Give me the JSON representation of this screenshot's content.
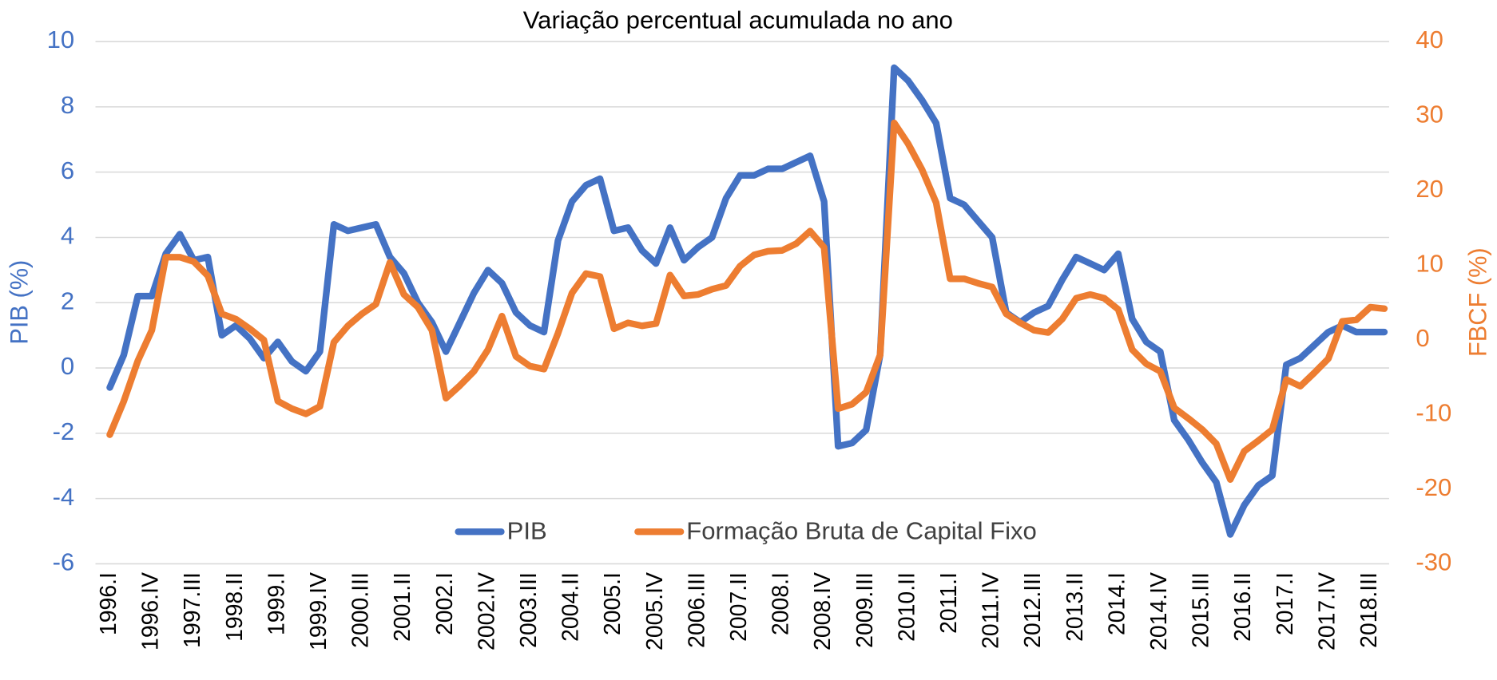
{
  "chart_data": {
    "type": "line",
    "title": "Variação percentual acumulada no ano",
    "y_label": "PIB (%)",
    "y2_label": "FBCF (%)",
    "categories": [
      "1996.I",
      null,
      null,
      "1996.IV",
      null,
      null,
      "1997.III",
      null,
      null,
      "1998.II",
      null,
      null,
      "1999.I",
      null,
      null,
      "1999.IV",
      null,
      null,
      "2000.III",
      null,
      null,
      "2001.II",
      null,
      null,
      "2002.I",
      null,
      null,
      "2002.IV",
      null,
      null,
      "2003.III",
      null,
      null,
      "2004.II",
      null,
      null,
      "2005.I",
      null,
      null,
      "2005.IV",
      null,
      null,
      "2006.III",
      null,
      null,
      "2007.II",
      null,
      null,
      "2008.I",
      null,
      null,
      "2008.IV",
      null,
      null,
      "2009.III",
      null,
      null,
      "2010.II",
      null,
      null,
      "2011.I",
      null,
      null,
      "2011.IV",
      null,
      null,
      "2012.III",
      null,
      null,
      "2013.II",
      null,
      null,
      "2014.I",
      null,
      null,
      "2014.IV",
      null,
      null,
      "2015.III",
      null,
      null,
      "2016.II",
      null,
      null,
      "2017.I",
      null,
      null,
      "2017.IV",
      null,
      null,
      "2018.III",
      null
    ],
    "series": [
      {
        "name": "PIB",
        "color": "#4472c4",
        "axis": "y",
        "values": [
          -0.6,
          0.4,
          2.2,
          2.2,
          3.5,
          4.1,
          3.3,
          3.4,
          1.0,
          1.3,
          0.9,
          0.3,
          0.8,
          0.2,
          -0.1,
          0.5,
          4.4,
          4.2,
          4.3,
          4.4,
          3.4,
          2.9,
          2.0,
          1.4,
          0.5,
          1.4,
          2.3,
          3.0,
          2.6,
          1.7,
          1.3,
          1.1,
          3.9,
          5.1,
          5.6,
          5.8,
          4.2,
          4.3,
          3.6,
          3.2,
          4.3,
          3.3,
          3.7,
          4.0,
          5.2,
          5.9,
          5.9,
          6.1,
          6.1,
          6.3,
          6.5,
          5.1,
          -2.4,
          -2.3,
          -1.9,
          0.4,
          9.2,
          8.8,
          8.2,
          7.5,
          5.2,
          5.0,
          4.5,
          4.0,
          1.7,
          1.4,
          1.7,
          1.9,
          2.7,
          3.4,
          3.2,
          3.0,
          3.5,
          1.5,
          0.8,
          0.5,
          -1.6,
          -2.2,
          -2.9,
          -3.5,
          -5.1,
          -4.2,
          -3.6,
          -3.3,
          0.1,
          0.3,
          0.7,
          1.1,
          1.3,
          1.1,
          1.1,
          1.1
        ]
      },
      {
        "name": "Formação Bruta de Capital Fixo",
        "color": "#ed7d31",
        "axis": "y2",
        "values": [
          -12.7,
          -8.2,
          -2.8,
          1.3,
          11.1,
          11.1,
          10.5,
          8.6,
          3.5,
          2.8,
          1.5,
          0,
          -8.2,
          -9.2,
          -9.9,
          -8.9,
          -0.3,
          1.9,
          3.5,
          4.8,
          10.4,
          6.1,
          4.4,
          1.3,
          -7.8,
          -6.1,
          -4.2,
          -1.3,
          3.2,
          -2.2,
          -3.5,
          -3.9,
          0.9,
          6.3,
          8.9,
          8.5,
          1.5,
          2.3,
          1.9,
          2.2,
          8.7,
          5.9,
          6.1,
          6.8,
          7.3,
          9.9,
          11.4,
          11.9,
          12.0,
          12.9,
          14.6,
          12.4,
          -9.2,
          -8.6,
          -7.0,
          -2.0,
          29.1,
          26.3,
          22.8,
          18.4,
          8.2,
          8.2,
          7.6,
          7.1,
          3.5,
          2.3,
          1.3,
          1.0,
          2.8,
          5.6,
          6.1,
          5.6,
          4.1,
          -1.3,
          -3.2,
          -4.2,
          -9.1,
          -10.5,
          -12.0,
          -13.9,
          -18.7,
          -14.9,
          -13.5,
          -12.0,
          -5.3,
          -6.2,
          -4.4,
          -2.5,
          2.5,
          2.7,
          4.4,
          4.2
        ]
      }
    ],
    "ylim": [
      -6,
      10
    ],
    "yticks": [
      -6,
      -4,
      -2,
      0,
      2,
      4,
      6,
      8,
      10
    ],
    "y2lim": [
      -30,
      40
    ],
    "y2ticks": [
      -30,
      -20,
      -10,
      0,
      10,
      20,
      30,
      40
    ],
    "grid": true,
    "legend": "bottom"
  }
}
